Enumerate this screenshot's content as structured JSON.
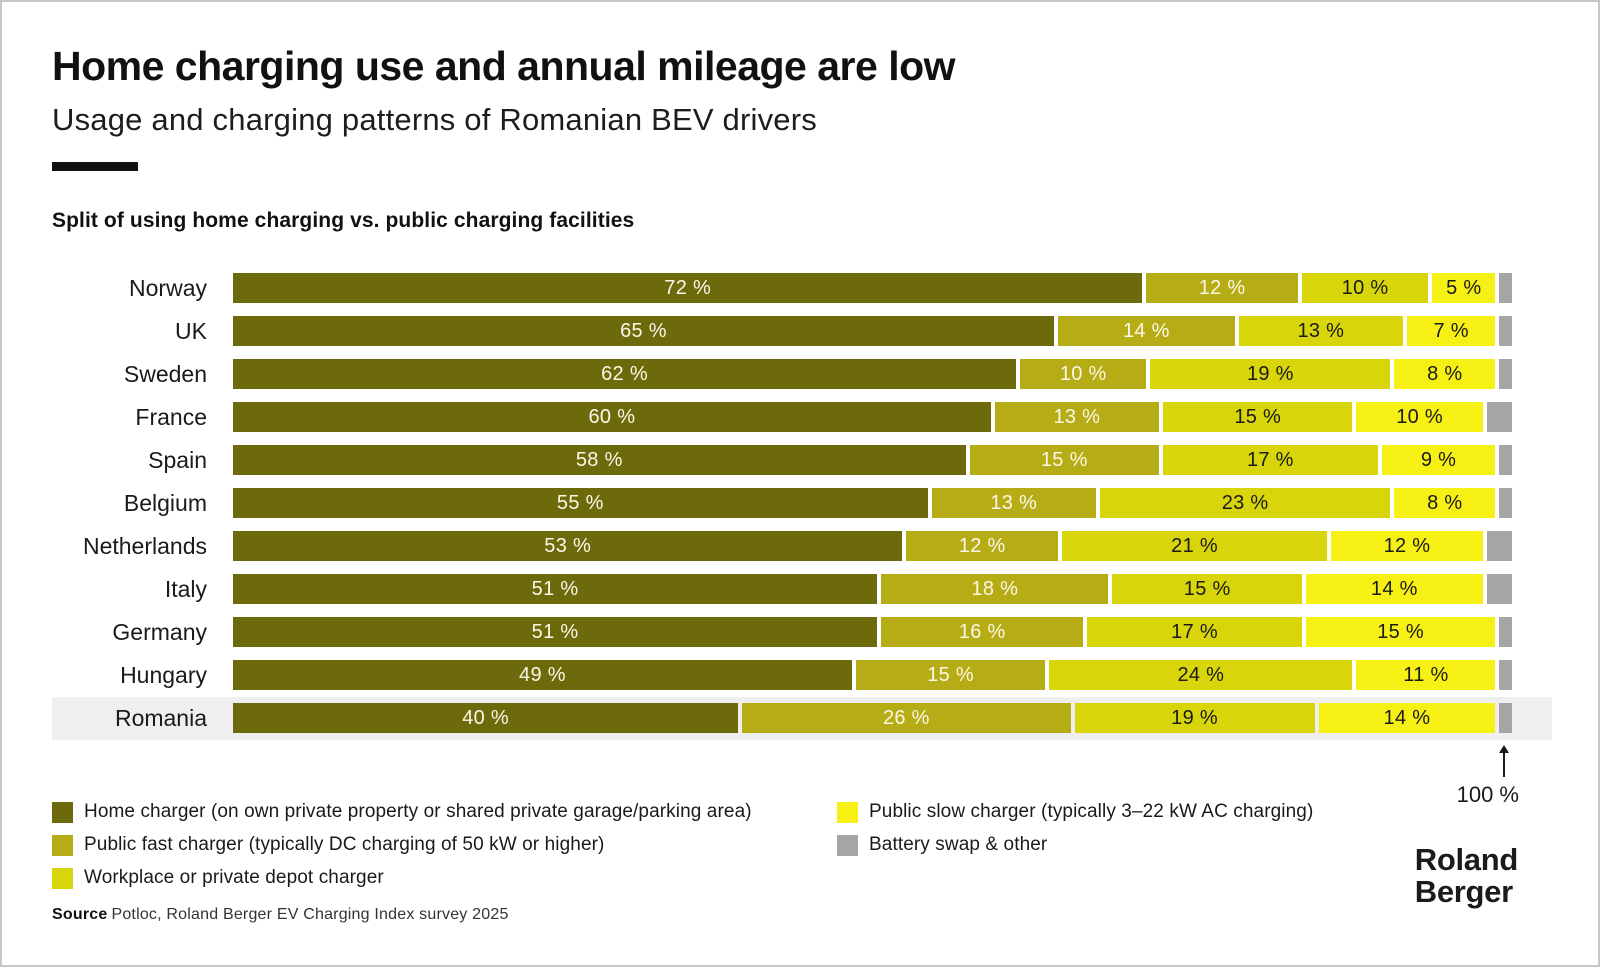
{
  "header": {
    "title": "Home charging use and annual mileage are low",
    "subtitle": "Usage and charging patterns of Romanian BEV drivers"
  },
  "chart_title": "Split of using home charging vs. public charging facilities",
  "chart_data": {
    "type": "bar",
    "orientation": "horizontal",
    "stacked": true,
    "unit": "%",
    "xlim": [
      0,
      100
    ],
    "categories": [
      "Norway",
      "UK",
      "Sweden",
      "France",
      "Spain",
      "Belgium",
      "Netherlands",
      "Italy",
      "Germany",
      "Hungary",
      "Romania"
    ],
    "series": [
      {
        "name": "Home charger (on own private property or shared private garage/parking area)",
        "color": "#6c6a0a",
        "label_color": "#fcf8e9",
        "show_value_labels": true,
        "values": [
          72,
          65,
          62,
          60,
          58,
          55,
          53,
          51,
          51,
          49,
          40
        ]
      },
      {
        "name": "Public fast charger (typically DC charging of 50 kW or higher)",
        "color": "#b6ac15",
        "label_color": "#fcf8e9",
        "show_value_labels": true,
        "values": [
          12,
          14,
          10,
          13,
          15,
          13,
          12,
          18,
          16,
          15,
          26
        ]
      },
      {
        "name": "Workplace or private depot charger",
        "color": "#d8d60a",
        "label_color": "#1a1a1a",
        "show_value_labels": true,
        "values": [
          10,
          13,
          19,
          15,
          17,
          23,
          21,
          15,
          17,
          24,
          19
        ]
      },
      {
        "name": "Public slow charger (typically 3–22 kW AC charging)",
        "color": "#f7f014",
        "label_color": "#1a1a1a",
        "show_value_labels": true,
        "values": [
          5,
          7,
          8,
          10,
          9,
          8,
          12,
          14,
          15,
          11,
          14
        ]
      },
      {
        "name": "Battery swap & other",
        "color": "#a5a5a5",
        "label_color": "#1a1a1a",
        "show_value_labels": false,
        "values": [
          1,
          1,
          1,
          2,
          1,
          1,
          2,
          2,
          1,
          1,
          1
        ]
      }
    ],
    "highlighted_category": "Romania",
    "total_annotation": "100 %"
  },
  "legend": {
    "columns": [
      {
        "items": [
          {
            "label": "Home charger (on own private property or shared private garage/parking area)",
            "color": "#6c6a0a"
          },
          {
            "label": "Public fast charger (typically DC charging of 50 kW or higher)",
            "color": "#b6ac15"
          },
          {
            "label": "Workplace or private depot charger",
            "color": "#d8d60a"
          }
        ]
      },
      {
        "items": [
          {
            "label": "Public slow charger (typically 3–22 kW AC charging)",
            "color": "#f7f014"
          },
          {
            "label": "Battery swap & other",
            "color": "#a5a5a5"
          }
        ]
      }
    ]
  },
  "source": {
    "label": "Source",
    "text": "Potloc, Roland Berger EV Charging Index survey 2025"
  },
  "logo": {
    "line1": "Roland",
    "line2": "Berger"
  }
}
